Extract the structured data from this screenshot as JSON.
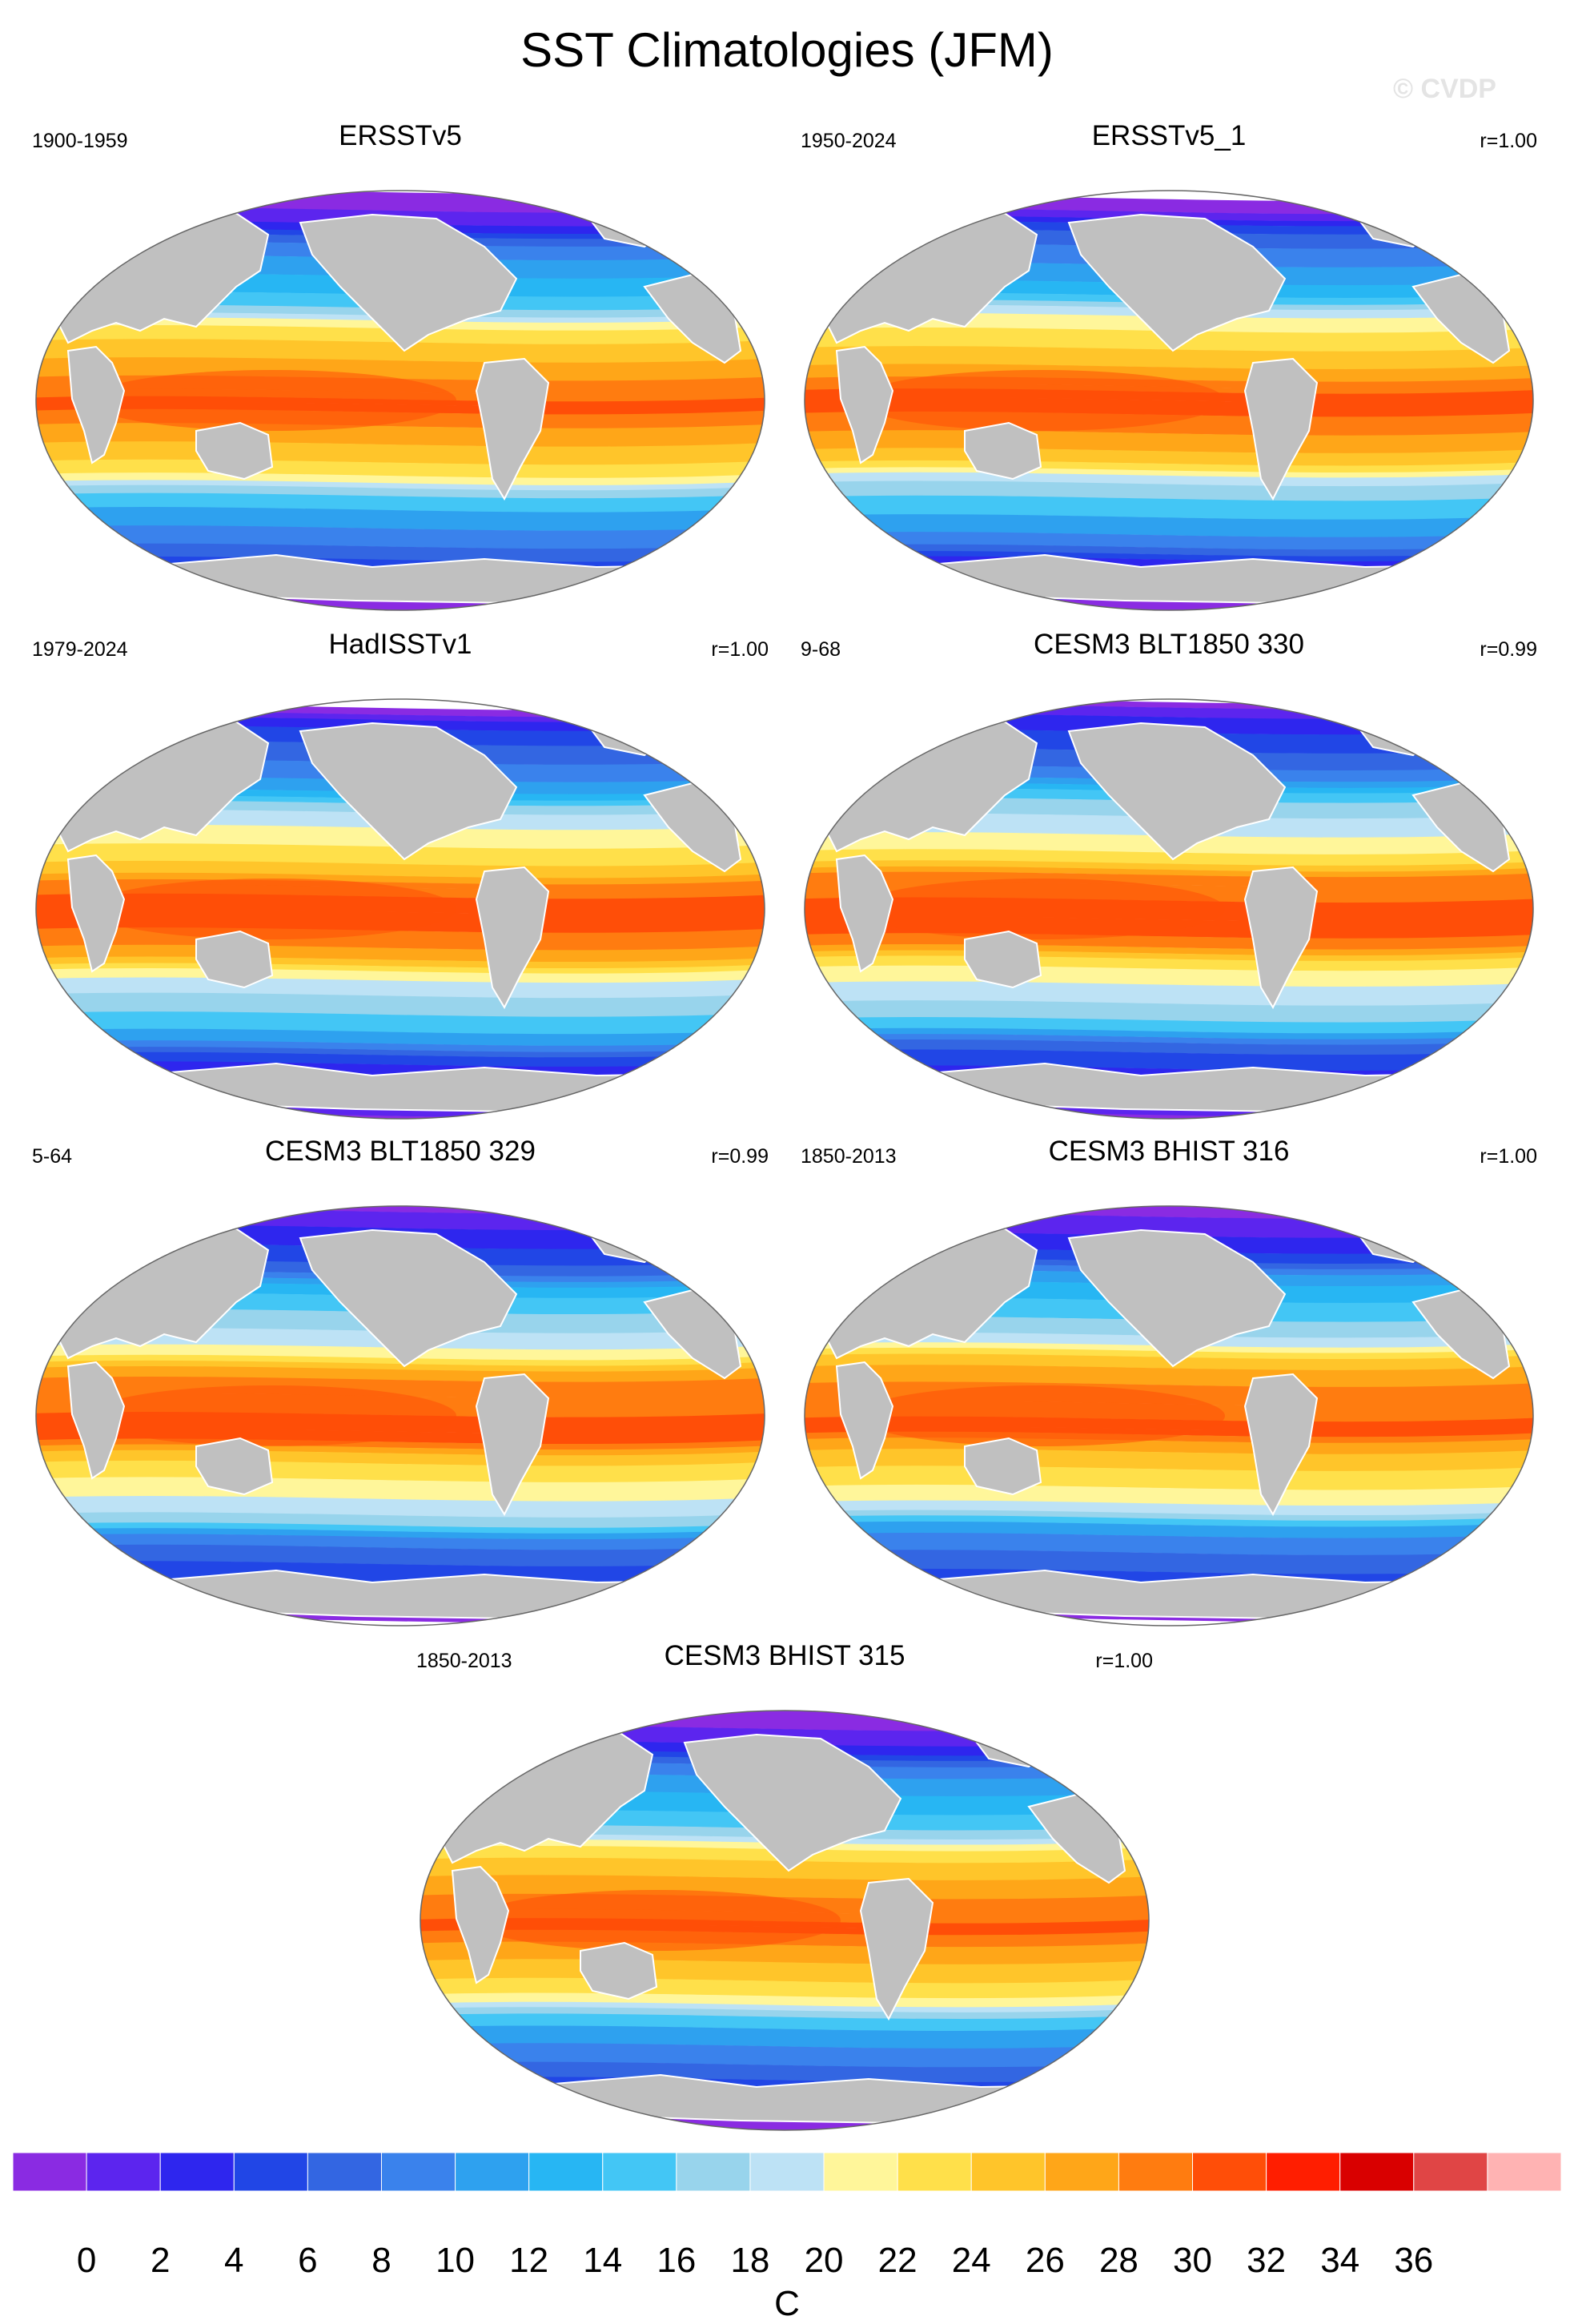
{
  "title": "SST Climatologies (JFM)",
  "watermark": "© CVDP",
  "palette": [
    "#8a2be2",
    "#5c25ee",
    "#2e26ee",
    "#2146e6",
    "#3366e2",
    "#3a82ec",
    "#2ea1ef",
    "#27b6f3",
    "#43c6f5",
    "#98d4ec",
    "#bde2f5",
    "#fff69a",
    "#ffe04a",
    "#ffc52a",
    "#ffa618",
    "#ff7c10",
    "#ff4e08",
    "#ff1e00",
    "#d90000",
    "#e04545",
    "#ffb3b3"
  ],
  "land_color": "#c0c0c0",
  "panels": [
    {
      "title": "ERSSTv5",
      "left": "1900-1959",
      "right": ""
    },
    {
      "title": "ERSSTv5_1",
      "left": "1950-2024",
      "right": "r=1.00"
    },
    {
      "title": "HadISSTv1",
      "left": "1979-2024",
      "right": "r=1.00"
    },
    {
      "title": "CESM3 BLT1850 330",
      "left": "9-68",
      "right": "r=0.99"
    },
    {
      "title": "CESM3 BLT1850 329",
      "left": "5-64",
      "right": "r=0.99"
    },
    {
      "title": "CESM3 BHIST 316",
      "left": "1850-2013",
      "right": "r=1.00"
    },
    {
      "title": "CESM3 BHIST 315",
      "left": "1850-2013",
      "right": "r=1.00"
    }
  ],
  "colorbar": {
    "labels": [
      "0",
      "2",
      "4",
      "6",
      "8",
      "10",
      "12",
      "14",
      "16",
      "18",
      "20",
      "22",
      "24",
      "26",
      "28",
      "30",
      "32",
      "34",
      "36"
    ],
    "unit": "C"
  }
}
